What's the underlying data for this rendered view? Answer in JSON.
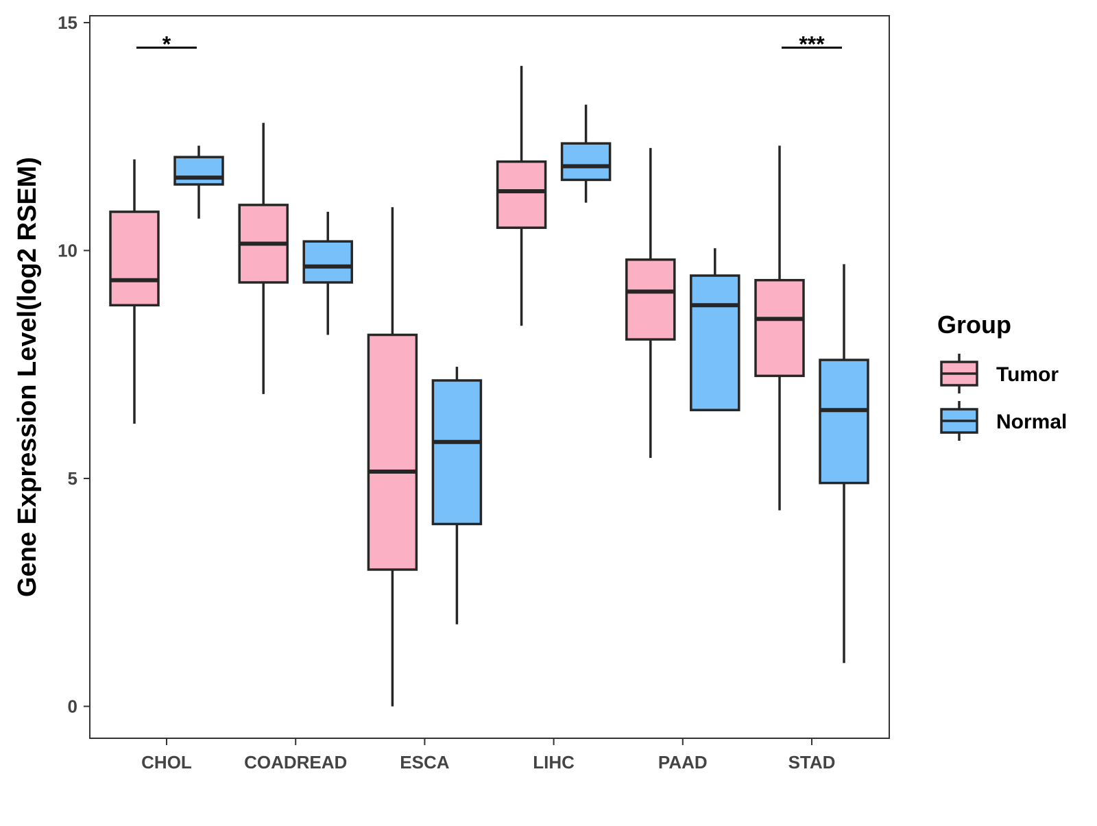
{
  "chart_data": {
    "type": "boxplot",
    "title": "",
    "xlabel": "",
    "ylabel": "Gene Expression Level(log2 RSEM)",
    "ylim": [
      -0.7,
      15.15
    ],
    "yticks": [
      0,
      5,
      10,
      15
    ],
    "categories": [
      "CHOL",
      "COADREAD",
      "ESCA",
      "LIHC",
      "PAAD",
      "STAD"
    ],
    "grid": false,
    "legend": {
      "title": "Group",
      "position": "right",
      "entries": [
        {
          "name": "Tumor",
          "color": "#FBB1C3"
        },
        {
          "name": "Normal",
          "color": "#77C0F9"
        }
      ]
    },
    "series": [
      {
        "name": "Tumor",
        "color": "#FBB1C3",
        "boxes": [
          {
            "category": "CHOL",
            "whisker_low": 6.2,
            "q1": 8.8,
            "median": 9.35,
            "q3": 10.85,
            "whisker_high": 12.0
          },
          {
            "category": "COADREAD",
            "whisker_low": 6.85,
            "q1": 9.3,
            "median": 10.15,
            "q3": 11.0,
            "whisker_high": 12.8
          },
          {
            "category": "ESCA",
            "whisker_low": 0.0,
            "q1": 3.0,
            "median": 5.15,
            "q3": 8.15,
            "whisker_high": 10.95
          },
          {
            "category": "LIHC",
            "whisker_low": 8.35,
            "q1": 10.5,
            "median": 11.3,
            "q3": 11.95,
            "whisker_high": 14.05
          },
          {
            "category": "PAAD",
            "whisker_low": 5.45,
            "q1": 8.05,
            "median": 9.1,
            "q3": 9.8,
            "whisker_high": 12.25
          },
          {
            "category": "STAD",
            "whisker_low": 4.3,
            "q1": 7.25,
            "median": 8.5,
            "q3": 9.35,
            "whisker_high": 12.3
          }
        ]
      },
      {
        "name": "Normal",
        "color": "#77C0F9",
        "boxes": [
          {
            "category": "CHOL",
            "whisker_low": 10.7,
            "q1": 11.45,
            "median": 11.6,
            "q3": 12.05,
            "whisker_high": 12.3
          },
          {
            "category": "COADREAD",
            "whisker_low": 8.15,
            "q1": 9.3,
            "median": 9.65,
            "q3": 10.2,
            "whisker_high": 10.85
          },
          {
            "category": "ESCA",
            "whisker_low": 1.8,
            "q1": 4.0,
            "median": 5.8,
            "q3": 7.15,
            "whisker_high": 7.45
          },
          {
            "category": "LIHC",
            "whisker_low": 11.05,
            "q1": 11.55,
            "median": 11.85,
            "q3": 12.35,
            "whisker_high": 13.2
          },
          {
            "category": "PAAD",
            "whisker_low": 6.5,
            "q1": 6.5,
            "median": 8.8,
            "q3": 9.45,
            "whisker_high": 10.05
          },
          {
            "category": "STAD",
            "whisker_low": 0.95,
            "q1": 4.9,
            "median": 6.5,
            "q3": 7.6,
            "whisker_high": 9.7
          }
        ]
      }
    ],
    "annotations": [
      {
        "category": "CHOL",
        "label": "*",
        "y": 14.45
      },
      {
        "category": "STAD",
        "label": "***",
        "y": 14.45
      }
    ]
  }
}
